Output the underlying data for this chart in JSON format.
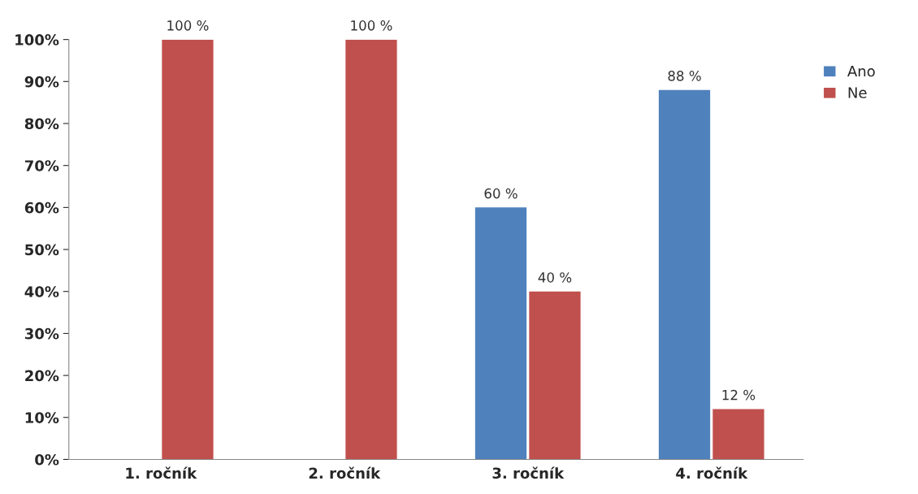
{
  "chart_data": {
    "type": "bar",
    "categories": [
      "1. ročník",
      "2. ročník",
      "3. ročník",
      "4. ročník"
    ],
    "series": [
      {
        "name": "Ano",
        "color": "#4f81bd",
        "values": [
          null,
          null,
          60,
          88
        ],
        "value_labels": [
          null,
          null,
          "60 %",
          "88 %"
        ]
      },
      {
        "name": "Ne",
        "color": "#c0504d",
        "values": [
          100,
          100,
          40,
          12
        ],
        "value_labels": [
          "100 %",
          "100 %",
          "40 %",
          "12 %"
        ]
      }
    ],
    "ylim": [
      0,
      100
    ],
    "yticks": [
      {
        "value": 0,
        "label": "0%"
      },
      {
        "value": 10,
        "label": "10%"
      },
      {
        "value": 20,
        "label": "20%"
      },
      {
        "value": 30,
        "label": "30%"
      },
      {
        "value": 40,
        "label": "40%"
      },
      {
        "value": 50,
        "label": "50%"
      },
      {
        "value": 60,
        "label": "60%"
      },
      {
        "value": 70,
        "label": "70%"
      },
      {
        "value": 80,
        "label": "80%"
      },
      {
        "value": 90,
        "label": "90%"
      },
      {
        "value": 100,
        "label": "100%"
      }
    ],
    "legend": "right",
    "grid": false
  }
}
